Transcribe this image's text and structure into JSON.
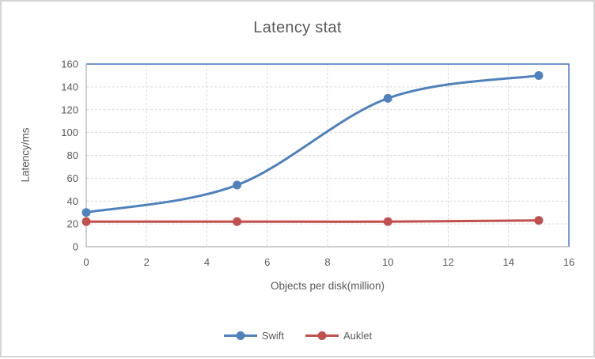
{
  "frame": {
    "background": "#FFFFFF",
    "border_color": "#D5D5D5"
  },
  "chart_data": {
    "type": "line",
    "title": "Latency stat",
    "xlabel": "Objects per disk(million)",
    "ylabel": "Latency/ms",
    "x": [
      0,
      5,
      10,
      15
    ],
    "series": [
      {
        "name": "Swift",
        "color": "#4F81BD",
        "values": [
          30,
          54,
          130,
          150
        ]
      },
      {
        "name": "Auklet",
        "color": "#C0504D",
        "values": [
          22,
          22,
          22,
          23
        ]
      }
    ],
    "xlim": [
      0,
      16
    ],
    "ylim": [
      0,
      160
    ],
    "x_ticks": [
      0,
      2,
      4,
      6,
      8,
      10,
      12,
      14,
      16
    ],
    "y_ticks": [
      0,
      20,
      40,
      60,
      80,
      100,
      120,
      140,
      160
    ],
    "grid": "dashed",
    "smooth": true,
    "legend_position": "bottom",
    "style": {
      "plot_border_color": "#4472C4",
      "axis_line_color": "#B3B3B3",
      "gridline_color": "#D9D9D9",
      "text_color": "#595959"
    }
  }
}
